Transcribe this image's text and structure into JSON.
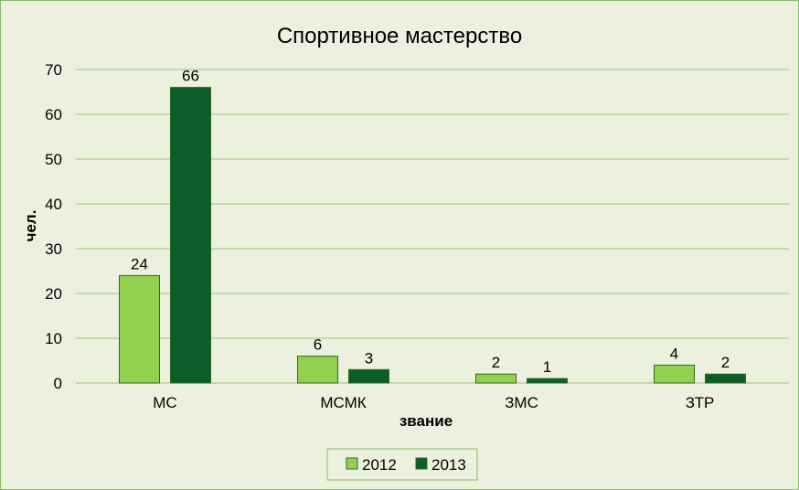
{
  "chart_data": {
    "type": "bar",
    "title": "Спортивное мастерство",
    "xlabel": "звание",
    "ylabel": "чел.",
    "categories": [
      "МС",
      "МСМК",
      "ЗМС",
      "ЗТР"
    ],
    "series": [
      {
        "name": "2012",
        "values": [
          24,
          6,
          2,
          4
        ],
        "color": "#92d050"
      },
      {
        "name": "2013",
        "values": [
          66,
          3,
          1,
          2
        ],
        "color": "#0b5d2c"
      }
    ],
    "ylim": [
      0,
      70
    ],
    "yticks": [
      0,
      10,
      20,
      30,
      40,
      50,
      60,
      70
    ],
    "grid": true,
    "legend_position": "bottom",
    "colors": {
      "background": "#ebf1de",
      "border": "#8db96a",
      "gridline": "#9bc278",
      "bar_outline": "#2f6b1f"
    }
  }
}
